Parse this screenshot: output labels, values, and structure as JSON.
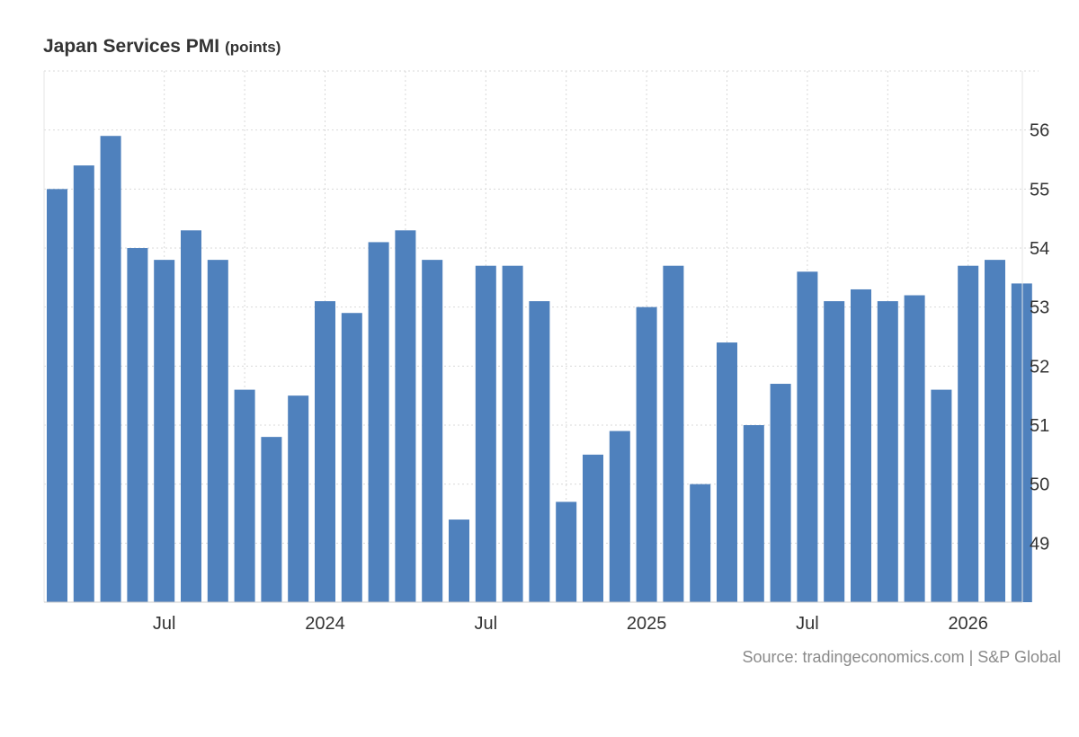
{
  "chart_data": {
    "type": "bar",
    "title": "Japan Services PMI",
    "unit": "(points)",
    "source": "Source: tradingeconomics.com | S&P Global",
    "x": [
      "2023-03",
      "2023-04",
      "2023-05",
      "2023-06",
      "2023-07",
      "2023-08",
      "2023-09",
      "2023-10",
      "2023-11",
      "2023-12",
      "2024-01",
      "2024-02",
      "2024-03",
      "2024-04",
      "2024-05",
      "2024-06",
      "2024-07",
      "2024-08",
      "2024-09",
      "2024-10",
      "2024-11",
      "2024-12",
      "2025-01",
      "2025-02",
      "2025-03",
      "2025-04",
      "2025-05",
      "2025-06",
      "2025-07",
      "2025-08",
      "2025-09",
      "2025-10",
      "2025-11",
      "2025-12",
      "2026-01",
      "2026-02",
      "2026-03"
    ],
    "values": [
      55.0,
      55.4,
      55.9,
      54.0,
      53.8,
      54.3,
      53.8,
      51.6,
      50.8,
      51.5,
      53.1,
      52.9,
      54.1,
      54.3,
      53.8,
      49.4,
      53.7,
      53.7,
      53.1,
      49.7,
      50.5,
      50.9,
      53.0,
      53.7,
      50.0,
      52.4,
      51.0,
      51.7,
      53.6,
      53.1,
      53.3,
      53.1,
      53.2,
      51.6,
      53.7,
      53.8,
      53.4
    ],
    "ylim": [
      48.0,
      57.0
    ],
    "yticks": [
      49,
      50,
      51,
      52,
      53,
      54,
      55,
      56
    ],
    "xticks": [
      {
        "label": "Jul",
        "x": "2023-07"
      },
      {
        "label": "2024",
        "x": "2024-01"
      },
      {
        "label": "Jul",
        "x": "2024-07"
      },
      {
        "label": "2025",
        "x": "2025-01"
      },
      {
        "label": "Jul",
        "x": "2025-07"
      },
      {
        "label": "2026",
        "x": "2026-01"
      }
    ],
    "grid": true,
    "bar_color": "#4f81bd"
  }
}
